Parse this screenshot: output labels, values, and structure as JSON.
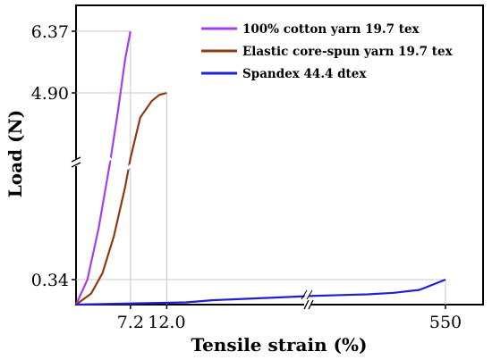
{
  "chart_data": {
    "type": "line",
    "xlabel": "Tensile strain (%)",
    "ylabel": "Load (N)",
    "x_axis_break": true,
    "y_axis_break": true,
    "x_ticks": [
      "7.2",
      "12.0",
      "550"
    ],
    "y_ticks": [
      "0.34",
      "4.90",
      "6.37"
    ],
    "legend_position": "top-right",
    "series": [
      {
        "name": "100% cotton yarn 19.7 tex",
        "color": "#a040f0",
        "x": [
          0,
          1.5,
          3.0,
          4.5,
          5.5,
          6.5,
          7.2
        ],
        "y": [
          0.0,
          0.34,
          1.6,
          3.2,
          4.4,
          5.7,
          6.37
        ]
      },
      {
        "name": "Elastic core-spun yarn 19.7 tex",
        "color": "#8b3a12",
        "x": [
          0,
          2.0,
          3.5,
          5.0,
          6.5,
          7.2,
          8.5,
          10.0,
          11.0,
          12.0
        ],
        "y": [
          0.0,
          0.15,
          0.5,
          1.4,
          2.6,
          3.3,
          4.3,
          4.7,
          4.85,
          4.9
        ]
      },
      {
        "name": "Spandex 44.4 dtex",
        "color": "#2020d0",
        "x": [
          0,
          50,
          100,
          200,
          300,
          400,
          450,
          500,
          550
        ],
        "y": [
          0.0,
          0.03,
          0.06,
          0.09,
          0.12,
          0.14,
          0.16,
          0.2,
          0.34
        ]
      }
    ]
  }
}
